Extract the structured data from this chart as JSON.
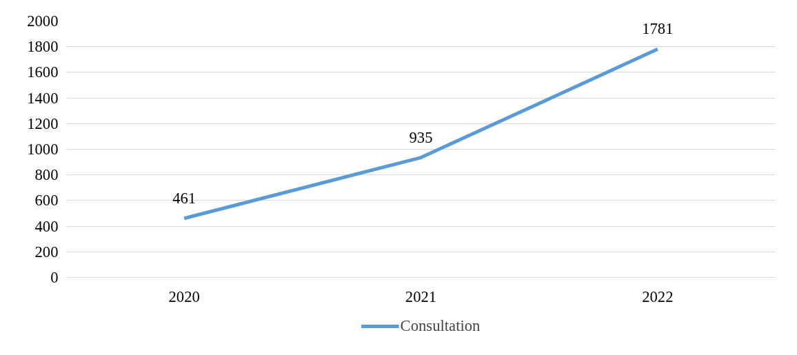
{
  "chart_data": {
    "type": "line",
    "categories": [
      "2020",
      "2021",
      "2022"
    ],
    "series": [
      {
        "name": "Consultation",
        "color": "#5b9bd5",
        "values": [
          461,
          935,
          1781
        ]
      }
    ],
    "ylim": [
      0,
      2000
    ],
    "yticks": [
      0,
      200,
      400,
      600,
      800,
      1000,
      1200,
      1400,
      1600,
      1800,
      2000
    ],
    "grid": "y",
    "legend": "bottom",
    "data_labels": true
  }
}
